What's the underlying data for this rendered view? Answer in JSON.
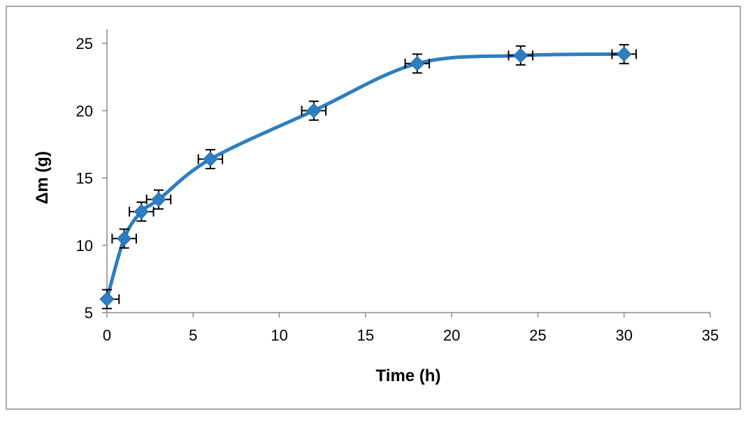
{
  "chart_data": {
    "type": "scatter",
    "title": "",
    "xlabel": "Time (h)",
    "ylabel": "Δm (g)",
    "xlim": [
      0,
      35
    ],
    "ylim": [
      5,
      25
    ],
    "xticks": [
      0,
      5,
      10,
      15,
      20,
      25,
      30,
      35
    ],
    "yticks": [
      5,
      10,
      15,
      20,
      25
    ],
    "xtick_labels": [
      "0",
      "5",
      "10",
      "15",
      "20",
      "25",
      "30",
      "35"
    ],
    "ytick_labels": [
      "5",
      "10",
      "15",
      "20",
      "25"
    ],
    "grid": false,
    "legend": "none",
    "line_style": "smoothed",
    "marker": "diamond",
    "series_color": "#2E7EC1",
    "series": [
      {
        "x": [
          0,
          1,
          2,
          3,
          6,
          12,
          18,
          24,
          30
        ],
        "y": [
          6.0,
          10.5,
          12.5,
          13.4,
          16.4,
          20.0,
          23.5,
          24.1,
          24.2
        ],
        "x_error": [
          0.7,
          0.7,
          0.7,
          0.7,
          0.7,
          0.7,
          0.7,
          0.7,
          0.7
        ],
        "y_error": [
          0.7,
          0.7,
          0.7,
          0.7,
          0.7,
          0.7,
          0.7,
          0.7,
          0.7
        ]
      }
    ]
  }
}
